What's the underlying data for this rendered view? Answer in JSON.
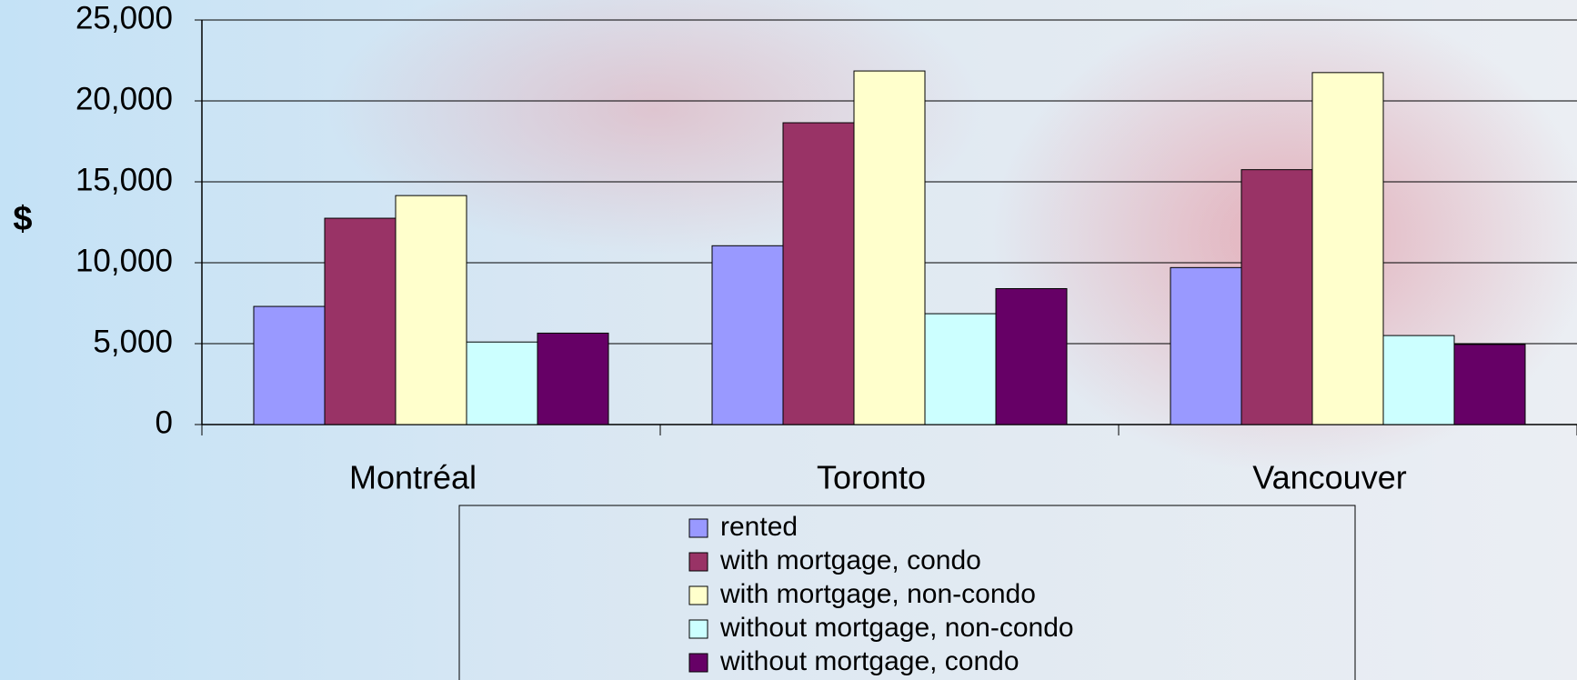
{
  "chart_data": {
    "type": "bar",
    "y_label": "$",
    "categories": [
      "Montréal",
      "Toronto",
      "Vancouver"
    ],
    "series": [
      {
        "name": "rented",
        "color": "#9999ff",
        "values": [
          7300,
          11050,
          9700
        ]
      },
      {
        "name": "with mortgage, condo",
        "color": "#993366",
        "values": [
          12750,
          18650,
          15750
        ]
      },
      {
        "name": "with mortgage, non-condo",
        "color": "#ffffcc",
        "values": [
          14150,
          21850,
          21750
        ]
      },
      {
        "name": "without mortgage, non-condo",
        "color": "#ccffff",
        "values": [
          5100,
          6850,
          5500
        ]
      },
      {
        "name": "without mortgage, condo",
        "color": "#660066",
        "values": [
          5650,
          8400,
          4950
        ]
      }
    ],
    "ylim": [
      0,
      25000
    ],
    "yticks": [
      0,
      {
        "value": 5000,
        "label": "5,000"
      },
      {
        "value": 10000,
        "label": "10,000"
      },
      {
        "value": 15000,
        "label": "15,000"
      },
      {
        "value": 20000,
        "label": "20,000"
      },
      {
        "value": 25000,
        "label": "25,000"
      }
    ],
    "grid": true,
    "legend": "bottom"
  }
}
